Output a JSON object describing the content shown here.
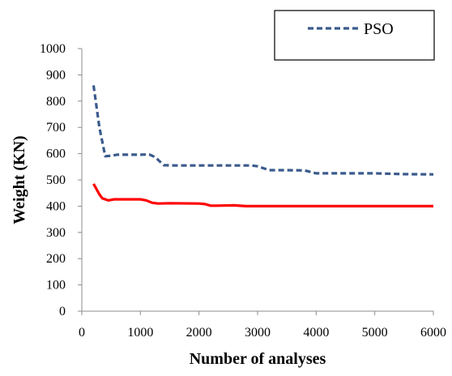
{
  "chart_data": {
    "type": "line",
    "title": "",
    "xlabel": "Number of analyses",
    "ylabel": "Weight (KN)",
    "xlim": [
      0,
      6000
    ],
    "ylim": [
      0,
      1000
    ],
    "x_ticks": [
      0,
      1000,
      2000,
      3000,
      4000,
      5000,
      6000
    ],
    "y_ticks": [
      0,
      100,
      200,
      300,
      400,
      500,
      600,
      700,
      800,
      900,
      1000
    ],
    "x_tick_labels": [
      "0",
      "1000",
      "2000",
      "3000",
      "4000",
      "5000",
      "6000"
    ],
    "y_tick_labels": [
      "0",
      "100",
      "200",
      "300",
      "400",
      "500",
      "600",
      "700",
      "800",
      "900",
      "1000"
    ],
    "grid": false,
    "legend": {
      "placement": "top-right",
      "entries": [
        "PSO"
      ]
    },
    "series": [
      {
        "name": "PSO",
        "color": "#3a5a8c",
        "style": "dashed",
        "x": [
          200,
          300,
          400,
          500,
          600,
          800,
          1000,
          1150,
          1250,
          1400,
          1600,
          2000,
          2500,
          2900,
          3000,
          3200,
          3500,
          3800,
          4000,
          4500,
          5000,
          5500,
          6000
        ],
        "y": [
          860,
          700,
          590,
          592,
          596,
          596,
          596,
          597,
          587,
          556,
          555,
          555,
          555,
          555,
          552,
          537,
          537,
          536,
          525,
          525,
          525,
          522,
          521
        ]
      },
      {
        "color": "#ff0000",
        "style": "solid",
        "x": [
          200,
          300,
          350,
          450,
          550,
          700,
          900,
          1000,
          1100,
          1200,
          1300,
          1500,
          2000,
          2100,
          2200,
          2300,
          2600,
          2800,
          3000,
          4000,
          5000,
          6000
        ],
        "y": [
          485,
          445,
          430,
          422,
          426,
          426,
          426,
          426,
          422,
          413,
          410,
          411,
          410,
          408,
          402,
          402,
          403,
          400,
          400,
          400,
          400,
          400
        ]
      }
    ]
  }
}
